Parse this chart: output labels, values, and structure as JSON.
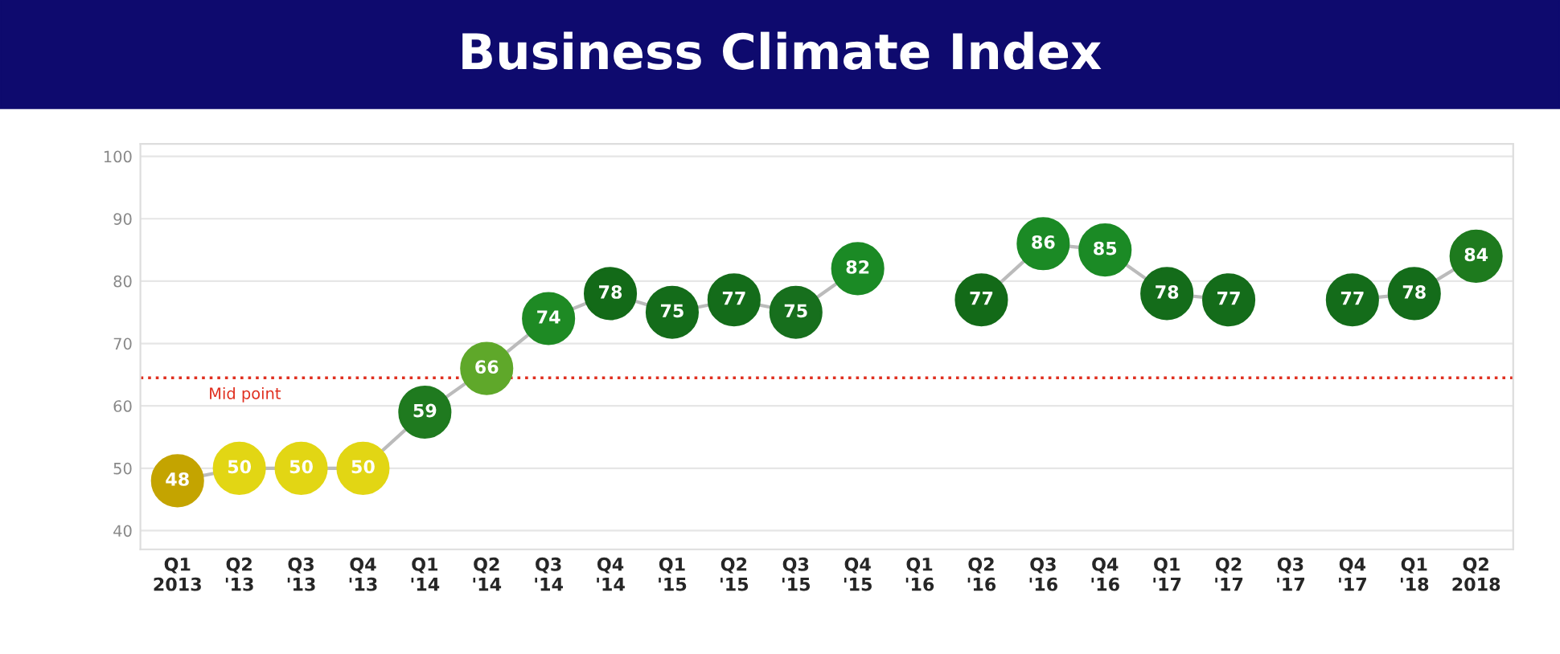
{
  "chart_data": {
    "type": "line",
    "title": "Business Climate Index",
    "categories": [
      "Q1\n2013",
      "Q2\n'13",
      "Q3\n'13",
      "Q4\n'13",
      "Q1\n'14",
      "Q2\n'14",
      "Q3\n'14",
      "Q4\n'14",
      "Q1\n'15",
      "Q2\n'15",
      "Q3\n'15",
      "Q4\n'15",
      "Q1\n'16",
      "Q2\n'16",
      "Q3\n'16",
      "Q4\n'16",
      "Q1\n'17",
      "Q2\n'17",
      "Q3\n'17",
      "Q4\n'17",
      "Q1\n'18",
      "Q2\n2018"
    ],
    "series": [
      {
        "color": "#bbbbbb",
        "values": [
          48,
          50,
          50,
          50,
          59,
          66,
          74,
          78,
          75,
          77,
          75,
          82,
          null,
          77,
          86,
          85,
          78,
          77,
          null,
          77,
          78,
          84
        ],
        "colors": [
          "#c4a400",
          "#e2d614",
          "#e2d614",
          "#e2d614",
          "#1f7a1f",
          "#5fa82a",
          "#1e8a24",
          "#136a18",
          "#146c1a",
          "#146c1a",
          "#176f1d",
          "#1b8a25",
          null,
          "#136a18",
          "#1b8a25",
          "#1b8a25",
          "#146c1a",
          "#146c1a",
          null,
          "#146c1a",
          "#146c1a",
          "#1e7a1e"
        ]
      }
    ],
    "ylim": [
      37,
      102
    ],
    "yticks": [
      40,
      50,
      60,
      70,
      80,
      90,
      100
    ],
    "grid": "y",
    "marker": "circle",
    "line_style": "solid",
    "data_labels": true,
    "ref_lines": [
      {
        "axis": "y",
        "value": 64.5,
        "label": "Mid point",
        "color": "#e03020",
        "line_style": "dotted"
      }
    ]
  }
}
